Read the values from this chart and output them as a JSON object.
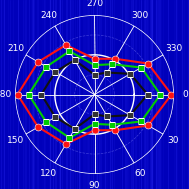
{
  "background_color": "#0000bb",
  "streak_color": "#1a1aff",
  "grid_color": "white",
  "dashed_grid_color": "#4444dd",
  "angle_labels": [
    "0",
    "30",
    "60",
    "90",
    "120",
    "150",
    "180",
    "210",
    "240",
    "270",
    "300",
    "330"
  ],
  "r_max": 1.0,
  "red_data": [
    0.97,
    0.78,
    0.52,
    0.45,
    0.72,
    0.82,
    0.97,
    0.82,
    0.72,
    0.45,
    0.52,
    0.78
  ],
  "green_data": [
    0.83,
    0.68,
    0.44,
    0.37,
    0.63,
    0.7,
    0.83,
    0.7,
    0.63,
    0.37,
    0.44,
    0.68
  ],
  "black_data": [
    0.67,
    0.52,
    0.32,
    0.25,
    0.5,
    0.57,
    0.67,
    0.57,
    0.5,
    0.25,
    0.32,
    0.52
  ],
  "angles_deg": [
    0,
    30,
    60,
    90,
    120,
    150,
    180,
    210,
    240,
    270,
    300,
    330
  ],
  "red_color": "#ff1111",
  "green_color": "#00cc00",
  "black_color": "#111111",
  "marker_size": 5,
  "line_width": 1.5,
  "label_fontsize": 6.5,
  "figsize": [
    1.89,
    1.89
  ],
  "dpi": 100
}
